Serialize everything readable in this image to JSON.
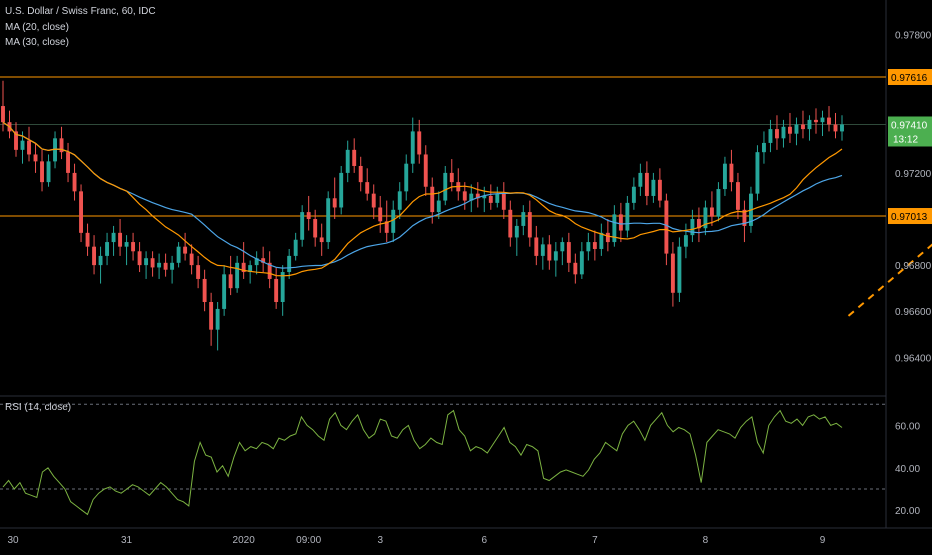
{
  "header": {
    "symbol_line": "U.S. Dollar / Swiss Franc, 60, IDC",
    "ma20_label": "MA (20, close)",
    "ma30_label": "MA (30, close)",
    "rsi_label": "RSI (14, close)"
  },
  "colors": {
    "background": "#000000",
    "up_candle": "#26a69a",
    "down_candle": "#ef5350",
    "ma20": "#ff9800",
    "ma30": "#4da6e8",
    "rsi": "#7cb342",
    "support_resistance": "#ff9800",
    "last_price": "#4caf50"
  },
  "chart_data": [
    {
      "type": "candlestick",
      "title": "U.S. Dollar / Swiss Franc, 60, IDC",
      "x_tick_labels": [
        "30",
        "31",
        "2020",
        "09:00",
        "3",
        "6",
        "7",
        "8",
        "9"
      ],
      "y_tick_labels": [
        "0.97800",
        "0.97200",
        "0.96800",
        "0.96600",
        "0.96400"
      ],
      "ylim": [
        0.9628,
        0.9795
      ],
      "grid": false,
      "series": [
        {
          "name": "MA (20, close)",
          "kind": "line"
        },
        {
          "name": "MA (30, close)",
          "kind": "line"
        }
      ],
      "horizontal_levels": [
        {
          "value": 0.97616,
          "label": "0.97616"
        },
        {
          "value": 0.97013,
          "label": "0.97013"
        }
      ],
      "last_price": {
        "value": 0.9741,
        "label": "0.97410",
        "countdown": "13:12"
      },
      "trendline": {
        "from": [
          130,
          0.9658
        ],
        "to": [
          160,
          0.973
        ]
      },
      "candles": [
        [
          0.9749,
          0.976,
          0.9738,
          0.9742
        ],
        [
          0.9742,
          0.9747,
          0.9735,
          0.9738
        ],
        [
          0.9738,
          0.9742,
          0.9727,
          0.973
        ],
        [
          0.973,
          0.9738,
          0.9724,
          0.9734
        ],
        [
          0.9734,
          0.974,
          0.9725,
          0.9728
        ],
        [
          0.9728,
          0.9733,
          0.972,
          0.9725
        ],
        [
          0.9725,
          0.973,
          0.9712,
          0.9716
        ],
        [
          0.9716,
          0.9728,
          0.9714,
          0.9725
        ],
        [
          0.9725,
          0.9738,
          0.9722,
          0.9735
        ],
        [
          0.9735,
          0.974,
          0.9726,
          0.9729
        ],
        [
          0.9729,
          0.9733,
          0.9716,
          0.972
        ],
        [
          0.972,
          0.9724,
          0.9708,
          0.9712
        ],
        [
          0.9712,
          0.9715,
          0.969,
          0.9694
        ],
        [
          0.9694,
          0.9698,
          0.9684,
          0.9688
        ],
        [
          0.9688,
          0.9693,
          0.9676,
          0.968
        ],
        [
          0.968,
          0.9688,
          0.9672,
          0.9684
        ],
        [
          0.9684,
          0.9694,
          0.968,
          0.969
        ],
        [
          0.969,
          0.9697,
          0.9684,
          0.9694
        ],
        [
          0.9694,
          0.97,
          0.9684,
          0.9688
        ],
        [
          0.9688,
          0.9693,
          0.968,
          0.969
        ],
        [
          0.969,
          0.9694,
          0.9682,
          0.9686
        ],
        [
          0.9686,
          0.969,
          0.9677,
          0.968
        ],
        [
          0.968,
          0.9686,
          0.9674,
          0.9683
        ],
        [
          0.9683,
          0.9686,
          0.9675,
          0.9679
        ],
        [
          0.9679,
          0.9685,
          0.9674,
          0.9681
        ],
        [
          0.9681,
          0.9685,
          0.9675,
          0.9678
        ],
        [
          0.9678,
          0.9684,
          0.9672,
          0.9681
        ],
        [
          0.9681,
          0.969,
          0.9679,
          0.9688
        ],
        [
          0.9688,
          0.9694,
          0.9682,
          0.9685
        ],
        [
          0.9685,
          0.9689,
          0.9676,
          0.968
        ],
        [
          0.968,
          0.9684,
          0.967,
          0.9674
        ],
        [
          0.9674,
          0.9678,
          0.966,
          0.9664
        ],
        [
          0.9664,
          0.9668,
          0.9645,
          0.9652
        ],
        [
          0.9652,
          0.9664,
          0.9643,
          0.9661
        ],
        [
          0.9661,
          0.968,
          0.9658,
          0.9676
        ],
        [
          0.9676,
          0.9684,
          0.9667,
          0.967
        ],
        [
          0.967,
          0.9684,
          0.9668,
          0.9681
        ],
        [
          0.9681,
          0.969,
          0.9674,
          0.9677
        ],
        [
          0.9677,
          0.9682,
          0.9672,
          0.968
        ],
        [
          0.968,
          0.9686,
          0.9676,
          0.9683
        ],
        [
          0.9683,
          0.9688,
          0.9677,
          0.9681
        ],
        [
          0.9681,
          0.9686,
          0.967,
          0.9674
        ],
        [
          0.9674,
          0.9679,
          0.9661,
          0.9664
        ],
        [
          0.9664,
          0.968,
          0.9658,
          0.9677
        ],
        [
          0.9677,
          0.9687,
          0.9674,
          0.9684
        ],
        [
          0.9684,
          0.9694,
          0.9682,
          0.9691
        ],
        [
          0.9691,
          0.9706,
          0.9688,
          0.9703
        ],
        [
          0.9703,
          0.971,
          0.9695,
          0.97
        ],
        [
          0.97,
          0.9704,
          0.9688,
          0.9692
        ],
        [
          0.9692,
          0.9698,
          0.9684,
          0.969
        ],
        [
          0.969,
          0.9712,
          0.9687,
          0.9709
        ],
        [
          0.9709,
          0.9718,
          0.97,
          0.9705
        ],
        [
          0.9705,
          0.9723,
          0.9702,
          0.972
        ],
        [
          0.972,
          0.9734,
          0.9716,
          0.973
        ],
        [
          0.973,
          0.9735,
          0.972,
          0.9723
        ],
        [
          0.9723,
          0.9727,
          0.9712,
          0.9716
        ],
        [
          0.9716,
          0.9722,
          0.9708,
          0.9711
        ],
        [
          0.9711,
          0.9715,
          0.97,
          0.9705
        ],
        [
          0.9705,
          0.971,
          0.9694,
          0.9699
        ],
        [
          0.9699,
          0.9708,
          0.969,
          0.9694
        ],
        [
          0.9694,
          0.9708,
          0.969,
          0.9704
        ],
        [
          0.9704,
          0.9716,
          0.97,
          0.9712
        ],
        [
          0.9712,
          0.9728,
          0.9708,
          0.9724
        ],
        [
          0.9724,
          0.9744,
          0.972,
          0.9738
        ],
        [
          0.9738,
          0.9743,
          0.9724,
          0.9728
        ],
        [
          0.9728,
          0.9732,
          0.971,
          0.9714
        ],
        [
          0.9714,
          0.9718,
          0.9698,
          0.9703
        ],
        [
          0.9703,
          0.9712,
          0.97,
          0.9708
        ],
        [
          0.9708,
          0.9723,
          0.9706,
          0.972
        ],
        [
          0.972,
          0.9726,
          0.9712,
          0.9716
        ],
        [
          0.9716,
          0.9722,
          0.9708,
          0.9712
        ],
        [
          0.9712,
          0.9716,
          0.9704,
          0.9708
        ],
        [
          0.9708,
          0.9715,
          0.9703,
          0.9711
        ],
        [
          0.9711,
          0.9716,
          0.9705,
          0.9709
        ],
        [
          0.9709,
          0.9714,
          0.9703,
          0.971
        ],
        [
          0.971,
          0.9715,
          0.9704,
          0.9707
        ],
        [
          0.9707,
          0.9714,
          0.9705,
          0.9711
        ],
        [
          0.9711,
          0.9716,
          0.97,
          0.9704
        ],
        [
          0.9704,
          0.9708,
          0.9688,
          0.9692
        ],
        [
          0.9692,
          0.97,
          0.9684,
          0.9697
        ],
        [
          0.9697,
          0.9706,
          0.9693,
          0.9703
        ],
        [
          0.9703,
          0.9708,
          0.9688,
          0.9692
        ],
        [
          0.9692,
          0.9697,
          0.968,
          0.9684
        ],
        [
          0.9684,
          0.9692,
          0.9678,
          0.9689
        ],
        [
          0.9689,
          0.9693,
          0.9678,
          0.9682
        ],
        [
          0.9682,
          0.969,
          0.9675,
          0.9686
        ],
        [
          0.9686,
          0.9692,
          0.968,
          0.969
        ],
        [
          0.969,
          0.9694,
          0.9677,
          0.9681
        ],
        [
          0.9681,
          0.9685,
          0.9672,
          0.9676
        ],
        [
          0.9676,
          0.969,
          0.9674,
          0.9686
        ],
        [
          0.9686,
          0.9694,
          0.9682,
          0.969
        ],
        [
          0.969,
          0.9695,
          0.9682,
          0.9687
        ],
        [
          0.9687,
          0.9698,
          0.9684,
          0.9694
        ],
        [
          0.9694,
          0.97,
          0.9686,
          0.969
        ],
        [
          0.969,
          0.9706,
          0.9688,
          0.9702
        ],
        [
          0.9702,
          0.9707,
          0.969,
          0.9695
        ],
        [
          0.9695,
          0.971,
          0.9692,
          0.9707
        ],
        [
          0.9707,
          0.9718,
          0.9704,
          0.9714
        ],
        [
          0.9714,
          0.9724,
          0.971,
          0.972
        ],
        [
          0.972,
          0.9725,
          0.9706,
          0.971
        ],
        [
          0.971,
          0.972,
          0.9707,
          0.9717
        ],
        [
          0.9717,
          0.9722,
          0.9705,
          0.9708
        ],
        [
          0.9708,
          0.9711,
          0.968,
          0.9685
        ],
        [
          0.9685,
          0.969,
          0.9662,
          0.9668
        ],
        [
          0.9668,
          0.9692,
          0.9664,
          0.9688
        ],
        [
          0.9688,
          0.9698,
          0.9683,
          0.9693
        ],
        [
          0.9693,
          0.9704,
          0.969,
          0.97
        ],
        [
          0.97,
          0.9705,
          0.969,
          0.9696
        ],
        [
          0.9696,
          0.9708,
          0.9693,
          0.9705
        ],
        [
          0.9705,
          0.9712,
          0.9697,
          0.9701
        ],
        [
          0.9701,
          0.9716,
          0.9699,
          0.9713
        ],
        [
          0.9713,
          0.9727,
          0.971,
          0.9724
        ],
        [
          0.9724,
          0.973,
          0.9712,
          0.9716
        ],
        [
          0.9716,
          0.972,
          0.97,
          0.9704
        ],
        [
          0.9704,
          0.9708,
          0.969,
          0.9697
        ],
        [
          0.9697,
          0.9714,
          0.9694,
          0.9711
        ],
        [
          0.9711,
          0.9732,
          0.9708,
          0.9729
        ],
        [
          0.9729,
          0.9738,
          0.9724,
          0.9733
        ],
        [
          0.9733,
          0.9743,
          0.9729,
          0.9739
        ],
        [
          0.9739,
          0.9745,
          0.973,
          0.9735
        ],
        [
          0.9735,
          0.9743,
          0.9731,
          0.974
        ],
        [
          0.974,
          0.9746,
          0.9733,
          0.9737
        ],
        [
          0.9737,
          0.9744,
          0.9732,
          0.9741
        ],
        [
          0.9741,
          0.9747,
          0.9735,
          0.9739
        ],
        [
          0.9739,
          0.9745,
          0.9734,
          0.9743
        ],
        [
          0.9743,
          0.9748,
          0.9737,
          0.9742
        ],
        [
          0.9742,
          0.9747,
          0.9736,
          0.9744
        ],
        [
          0.9744,
          0.9749,
          0.9738,
          0.9741
        ],
        [
          0.9741,
          0.9746,
          0.9735,
          0.9738
        ],
        [
          0.9738,
          0.9745,
          0.9734,
          0.9741
        ]
      ]
    },
    {
      "type": "line",
      "title": "RSI (14, close)",
      "y_tick_labels": [
        "60.00",
        "40.00",
        "20.00"
      ],
      "ylim": [
        13,
        72
      ],
      "reference_levels": [
        70,
        30
      ],
      "series": [
        {
          "name": "RSI (14, close)",
          "values": [
            31,
            34,
            30,
            33,
            28,
            27,
            26,
            38,
            40,
            36,
            33,
            30,
            24,
            22,
            20,
            18,
            25,
            28,
            30,
            31,
            29,
            28,
            30,
            32,
            31,
            29,
            27,
            30,
            33,
            31,
            28,
            25,
            24,
            22,
            43,
            52,
            46,
            45,
            38,
            41,
            36,
            45,
            52,
            48,
            50,
            49,
            52,
            51,
            49,
            54,
            53,
            55,
            56,
            64,
            60,
            58,
            55,
            53,
            63,
            66,
            60,
            58,
            62,
            65,
            58,
            54,
            56,
            63,
            62,
            55,
            54,
            58,
            60,
            53,
            49,
            51,
            54,
            52,
            51,
            65,
            67,
            58,
            55,
            48,
            50,
            49,
            47,
            51,
            55,
            59,
            52,
            50,
            46,
            51,
            50,
            48,
            35,
            34,
            36,
            38,
            39,
            38,
            37,
            36,
            39,
            44,
            47,
            52,
            50,
            48,
            56,
            60,
            62,
            58,
            53,
            60,
            63,
            66,
            60,
            57,
            59,
            58,
            56,
            46,
            33,
            52,
            55,
            58,
            57,
            56,
            54,
            59,
            62,
            64,
            52,
            47,
            60,
            64,
            67,
            62,
            61,
            63,
            60,
            64,
            65,
            63,
            64,
            60,
            61,
            59
          ]
        }
      ]
    }
  ]
}
